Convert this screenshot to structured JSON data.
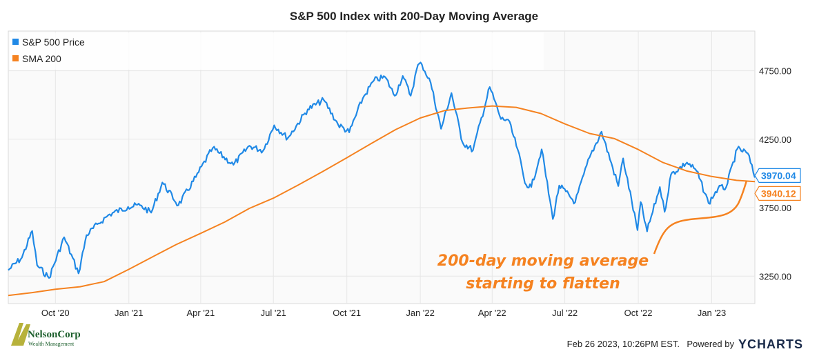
{
  "chart_data": {
    "type": "line",
    "title": "S&P 500 Index with 200-Day Moving Average",
    "xlabel": "",
    "ylabel": "",
    "x_range": [
      "2020-08-03",
      "2023-02-24"
    ],
    "ylim": [
      3050,
      5040
    ],
    "y_ticks": [
      "3250.00",
      "3750.00",
      "4250.00",
      "4750.00"
    ],
    "y_tick_values": [
      3250,
      3750,
      4250,
      4750
    ],
    "x_ticks": [
      "Oct '20",
      "Jan '21",
      "Apr '21",
      "Jul '21",
      "Oct '21",
      "Jan '22",
      "Apr '22",
      "Jul '22",
      "Oct '22",
      "Jan '23"
    ],
    "x_tick_dates": [
      "2020-10-01",
      "2021-01-01",
      "2021-04-01",
      "2021-07-01",
      "2021-10-01",
      "2022-01-01",
      "2022-04-01",
      "2022-07-01",
      "2022-10-01",
      "2023-01-01"
    ],
    "grid": true,
    "legend_position": "top-left",
    "series": [
      {
        "name": "S&P 500 Price",
        "color": "#2089e6",
        "last_value_label": "3970.04",
        "points": [
          [
            "2020-08-03",
            3294
          ],
          [
            "2020-08-20",
            3385
          ],
          [
            "2020-09-02",
            3580
          ],
          [
            "2020-09-08",
            3331
          ],
          [
            "2020-09-23",
            3237
          ],
          [
            "2020-10-12",
            3534
          ],
          [
            "2020-10-30",
            3270
          ],
          [
            "2020-11-09",
            3550
          ],
          [
            "2020-11-24",
            3635
          ],
          [
            "2020-12-08",
            3702
          ],
          [
            "2020-12-31",
            3756
          ],
          [
            "2021-01-15",
            3768
          ],
          [
            "2021-01-29",
            3714
          ],
          [
            "2021-02-12",
            3934
          ],
          [
            "2021-03-04",
            3768
          ],
          [
            "2021-03-26",
            3974
          ],
          [
            "2021-04-16",
            4185
          ],
          [
            "2021-05-12",
            4063
          ],
          [
            "2021-06-01",
            4202
          ],
          [
            "2021-06-18",
            4166
          ],
          [
            "2021-07-02",
            4352
          ],
          [
            "2021-07-19",
            4258
          ],
          [
            "2021-08-13",
            4468
          ],
          [
            "2021-09-02",
            4537
          ],
          [
            "2021-09-20",
            4358
          ],
          [
            "2021-10-04",
            4300
          ],
          [
            "2021-10-21",
            4549
          ],
          [
            "2021-11-04",
            4680
          ],
          [
            "2021-11-18",
            4704
          ],
          [
            "2021-11-30",
            4567
          ],
          [
            "2021-12-10",
            4712
          ],
          [
            "2021-12-20",
            4568
          ],
          [
            "2021-12-29",
            4793
          ],
          [
            "2022-01-03",
            4796
          ],
          [
            "2022-01-14",
            4662
          ],
          [
            "2022-01-27",
            4326
          ],
          [
            "2022-02-09",
            4587
          ],
          [
            "2022-02-23",
            4225
          ],
          [
            "2022-03-08",
            4170
          ],
          [
            "2022-03-29",
            4631
          ],
          [
            "2022-04-12",
            4397
          ],
          [
            "2022-04-21",
            4393
          ],
          [
            "2022-05-03",
            4175
          ],
          [
            "2022-05-12",
            3930
          ],
          [
            "2022-05-20",
            3901
          ],
          [
            "2022-06-02",
            4176
          ],
          [
            "2022-06-16",
            3667
          ],
          [
            "2022-06-24",
            3912
          ],
          [
            "2022-07-14",
            3790
          ],
          [
            "2022-08-01",
            4118
          ],
          [
            "2022-08-16",
            4305
          ],
          [
            "2022-09-06",
            3908
          ],
          [
            "2022-09-12",
            4110
          ],
          [
            "2022-09-30",
            3586
          ],
          [
            "2022-10-04",
            3791
          ],
          [
            "2022-10-12",
            3577
          ],
          [
            "2022-10-28",
            3901
          ],
          [
            "2022-11-03",
            3720
          ],
          [
            "2022-11-11",
            3993
          ],
          [
            "2022-12-01",
            4080
          ],
          [
            "2022-12-13",
            4019
          ],
          [
            "2022-12-28",
            3783
          ],
          [
            "2023-01-09",
            3892
          ],
          [
            "2023-01-19",
            3899
          ],
          [
            "2023-02-02",
            4179
          ],
          [
            "2023-02-15",
            4148
          ],
          [
            "2023-02-24",
            3970
          ]
        ]
      },
      {
        "name": "SMA 200",
        "color": "#f58220",
        "last_value_label": "3940.12",
        "points": [
          [
            "2020-08-03",
            3109
          ],
          [
            "2020-09-02",
            3130
          ],
          [
            "2020-10-01",
            3155
          ],
          [
            "2020-11-01",
            3173
          ],
          [
            "2020-12-01",
            3210
          ],
          [
            "2021-01-01",
            3300
          ],
          [
            "2021-02-01",
            3395
          ],
          [
            "2021-03-01",
            3480
          ],
          [
            "2021-04-01",
            3563
          ],
          [
            "2021-05-01",
            3645
          ],
          [
            "2021-06-01",
            3745
          ],
          [
            "2021-07-01",
            3820
          ],
          [
            "2021-08-01",
            3915
          ],
          [
            "2021-09-01",
            4015
          ],
          [
            "2021-10-01",
            4115
          ],
          [
            "2021-11-01",
            4220
          ],
          [
            "2021-12-01",
            4320
          ],
          [
            "2022-01-01",
            4405
          ],
          [
            "2022-02-01",
            4460
          ],
          [
            "2022-03-01",
            4478
          ],
          [
            "2022-04-01",
            4493
          ],
          [
            "2022-05-01",
            4483
          ],
          [
            "2022-06-01",
            4438
          ],
          [
            "2022-07-01",
            4362
          ],
          [
            "2022-08-01",
            4292
          ],
          [
            "2022-09-01",
            4255
          ],
          [
            "2022-10-01",
            4175
          ],
          [
            "2022-11-01",
            4080
          ],
          [
            "2022-12-01",
            4018
          ],
          [
            "2023-01-01",
            3978
          ],
          [
            "2023-02-01",
            3950
          ],
          [
            "2023-02-24",
            3940
          ]
        ]
      }
    ],
    "annotation": {
      "text_line1": "200-day moving average",
      "text_line2": "starting to flatten",
      "color": "#f58220"
    }
  },
  "footer": {
    "timestamp": "Feb 26 2023, 10:26PM EST.",
    "powered_by": "Powered by",
    "brand": "YCHARTS",
    "logo_text": "NelsonCorp",
    "logo_subtext": "Wealth Management"
  }
}
